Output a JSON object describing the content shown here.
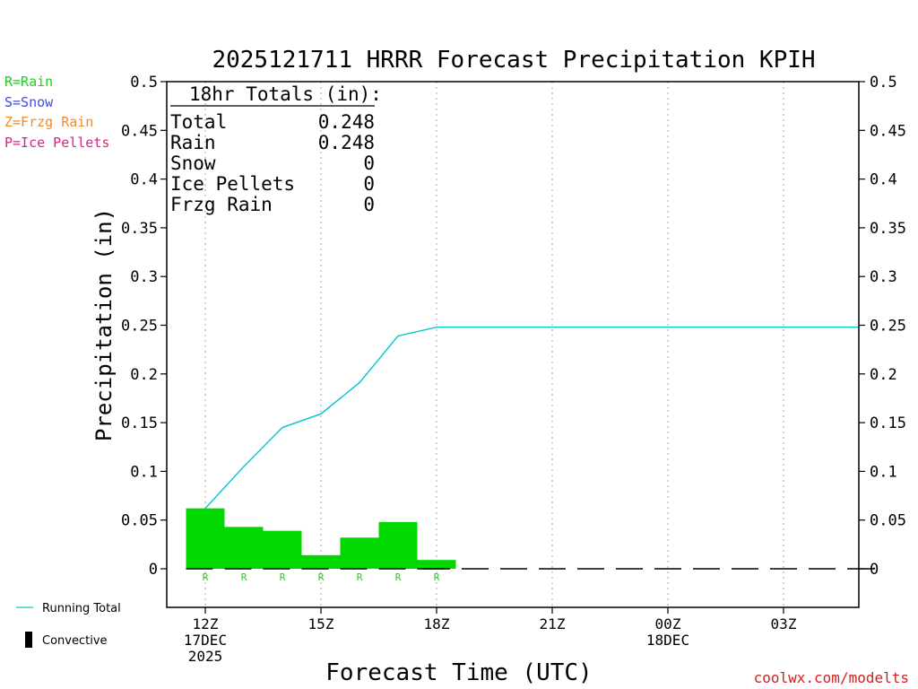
{
  "chart_data": {
    "type": "bar",
    "title": "2025121711 HRRR Forecast Precipitation KPIH",
    "xlabel": "Forecast Time (UTC)",
    "ylabel": "Precipitation (in)",
    "ylim": [
      0,
      0.5
    ],
    "xlim": [
      11.5,
      29.5
    ],
    "y_ticks": [
      "0",
      "0.05",
      "0.1",
      "0.15",
      "0.2",
      "0.25",
      "0.3",
      "0.35",
      "0.4",
      "0.45",
      "0.5"
    ],
    "y_tick_values": [
      0,
      0.05,
      0.1,
      0.15,
      0.2,
      0.25,
      0.3,
      0.35,
      0.4,
      0.45,
      0.5
    ],
    "x_ticks": [
      {
        "hour": 12,
        "lines": [
          "12Z",
          "17DEC",
          "2025"
        ]
      },
      {
        "hour": 15,
        "lines": [
          "15Z"
        ]
      },
      {
        "hour": 18,
        "lines": [
          "18Z"
        ]
      },
      {
        "hour": 21,
        "lines": [
          "21Z"
        ]
      },
      {
        "hour": 24,
        "lines": [
          "00Z",
          "18DEC"
        ]
      },
      {
        "hour": 27,
        "lines": [
          "03Z"
        ]
      }
    ],
    "bars": {
      "name": "Rain",
      "hours": [
        12,
        13,
        14,
        15,
        16,
        17,
        18
      ],
      "values": [
        0.062,
        0.043,
        0.039,
        0.014,
        0.032,
        0.048,
        0.009
      ],
      "type_letters": [
        "R",
        "R",
        "R",
        "R",
        "R",
        "R",
        "R"
      ],
      "color": "#00d800"
    },
    "running_total": {
      "name": "Running Total",
      "hours": [
        12,
        13,
        14,
        15,
        16,
        17,
        18,
        29.5
      ],
      "values": [
        0.062,
        0.105,
        0.145,
        0.159,
        0.191,
        0.239,
        0.248,
        0.248
      ],
      "color": "#00c8c8"
    },
    "zero_dash_hours": [
      18,
      19,
      20,
      21,
      22,
      23,
      24,
      25,
      26,
      27,
      28,
      29
    ]
  },
  "totals_box": {
    "header": "18hr Totals (in):",
    "rows": [
      {
        "label": "Total",
        "value": "0.248"
      },
      {
        "label": "Rain",
        "value": "0.248"
      },
      {
        "label": "Snow",
        "value": "0"
      },
      {
        "label": "Ice Pellets",
        "value": "0"
      },
      {
        "label": "Frzg Rain",
        "value": "0"
      }
    ]
  },
  "type_legend": [
    {
      "text": "R=Rain",
      "color": "#22cc22"
    },
    {
      "text": "S=Snow",
      "color": "#3a4ee8"
    },
    {
      "text": "Z=Frzg Rain",
      "color": "#f08a2a"
    },
    {
      "text": "P=Ice Pellets",
      "color": "#e0208a"
    }
  ],
  "bottom_legend": {
    "running_total_label": "Running Total",
    "convective_label": "Convective"
  },
  "credit": "coolwx.com/modelts",
  "colors": {
    "credit": "#d02020",
    "axis": "#000000",
    "grid": "#aaaaaa"
  }
}
